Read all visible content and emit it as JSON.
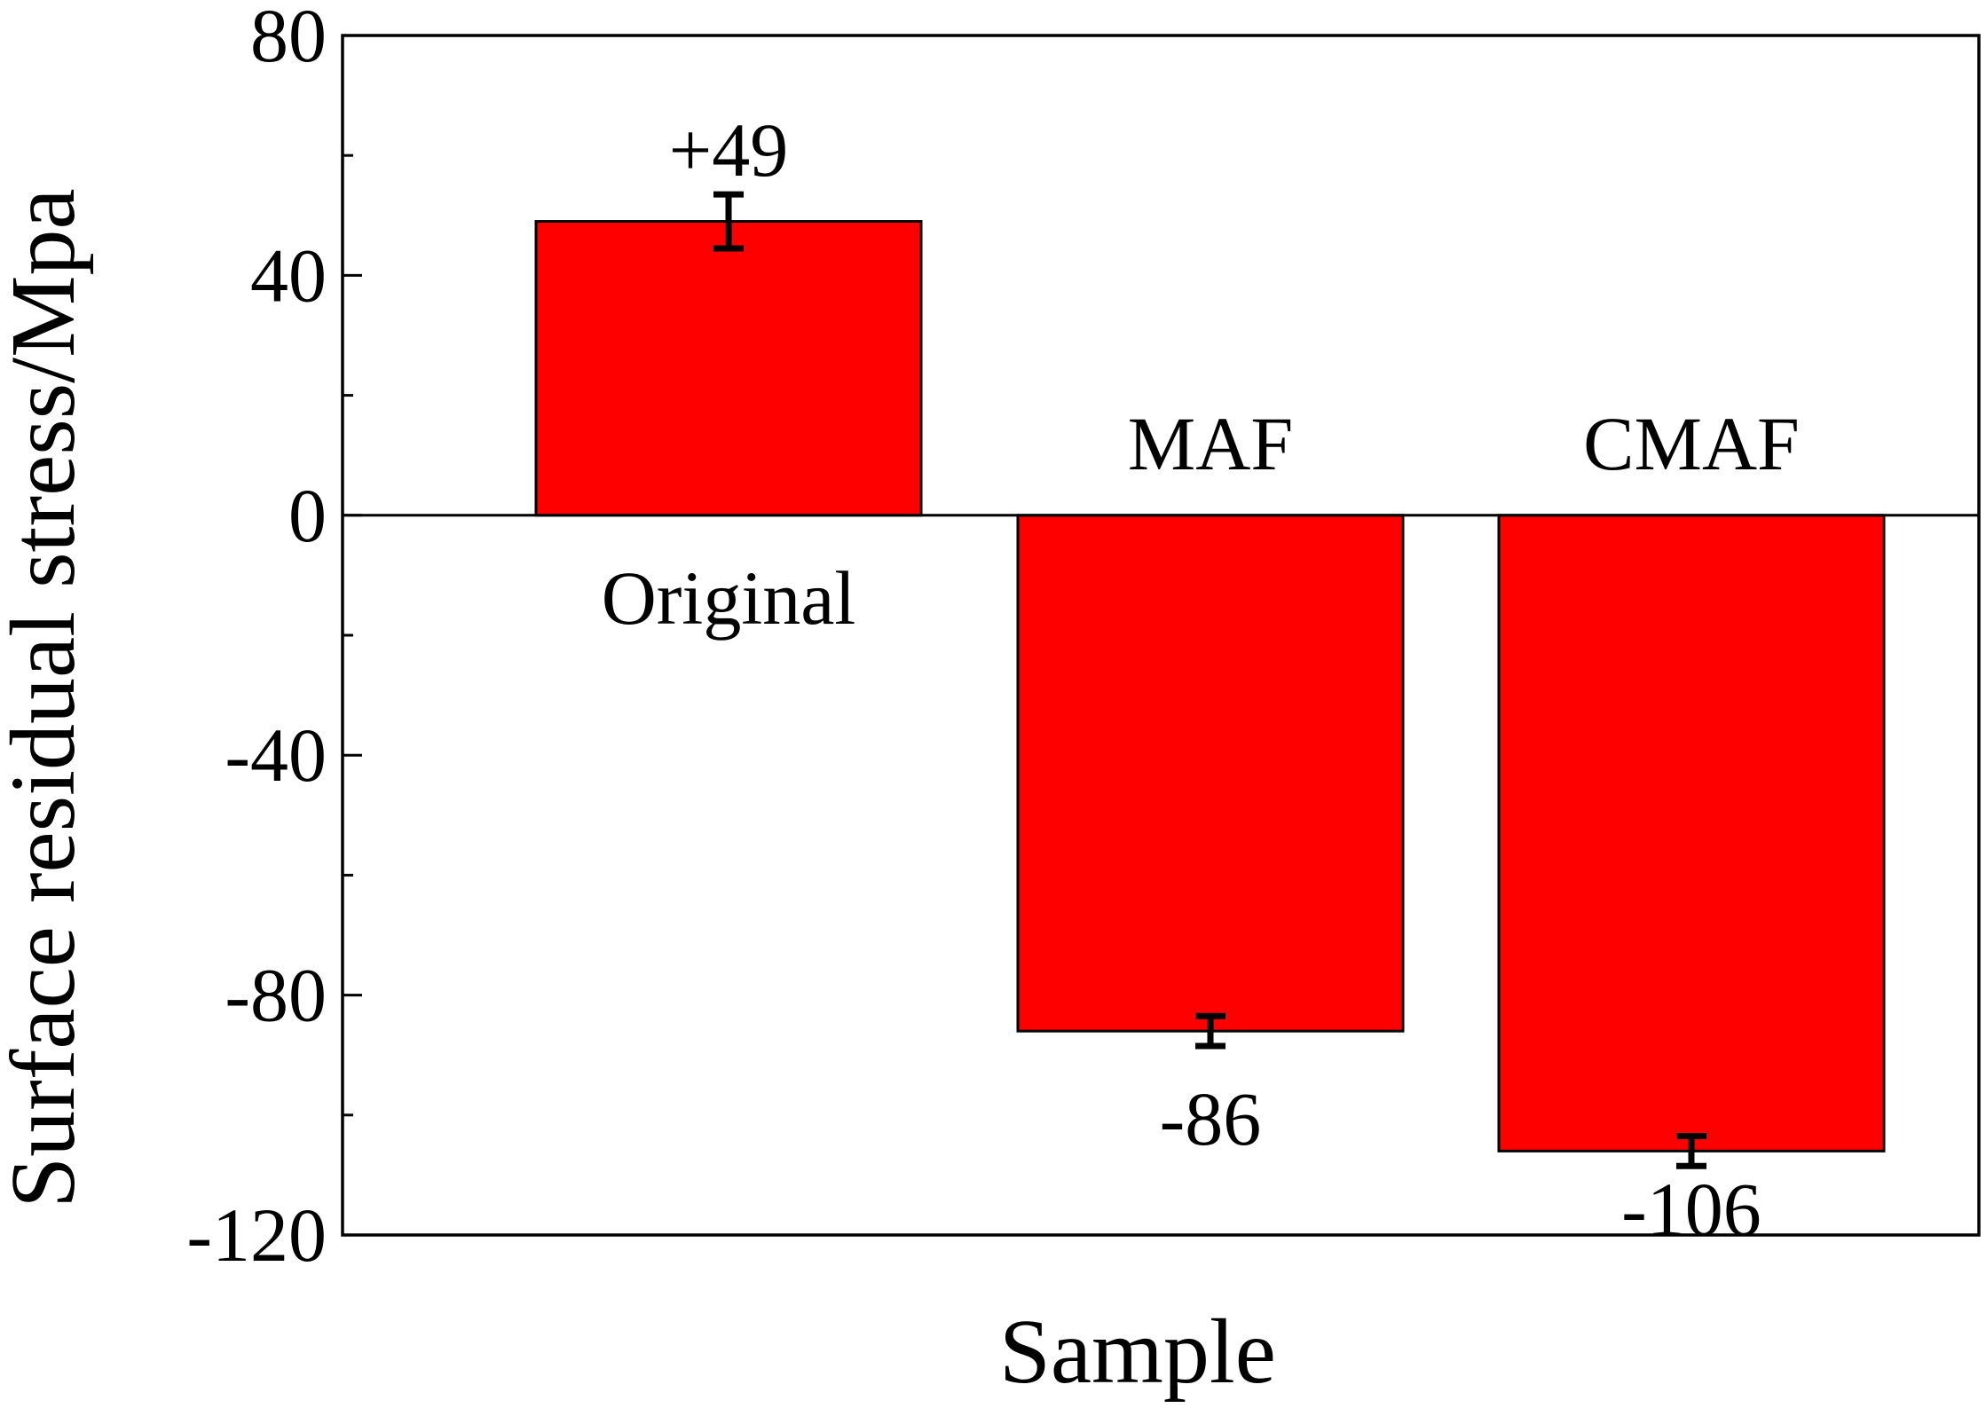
{
  "chart_data": {
    "type": "bar",
    "categories": [
      "Original",
      "MAF",
      "CMAF"
    ],
    "values": [
      49,
      -86,
      -106
    ],
    "error": [
      4.5,
      2.5,
      2.5
    ],
    "data_labels": [
      "+49",
      "-86",
      "-106"
    ],
    "xlabel": "Sample",
    "ylabel": "Surface residual stress/Mpa",
    "ylim": [
      -120,
      80
    ],
    "yticks": [
      80,
      40,
      0,
      -40,
      -80,
      -120
    ],
    "ytick_labels": [
      "80",
      "40",
      "0",
      "-40",
      "-80",
      "-120"
    ],
    "grid": false,
    "legend": "none",
    "bar_color": "#ff0000",
    "axis_color": "#000000"
  }
}
